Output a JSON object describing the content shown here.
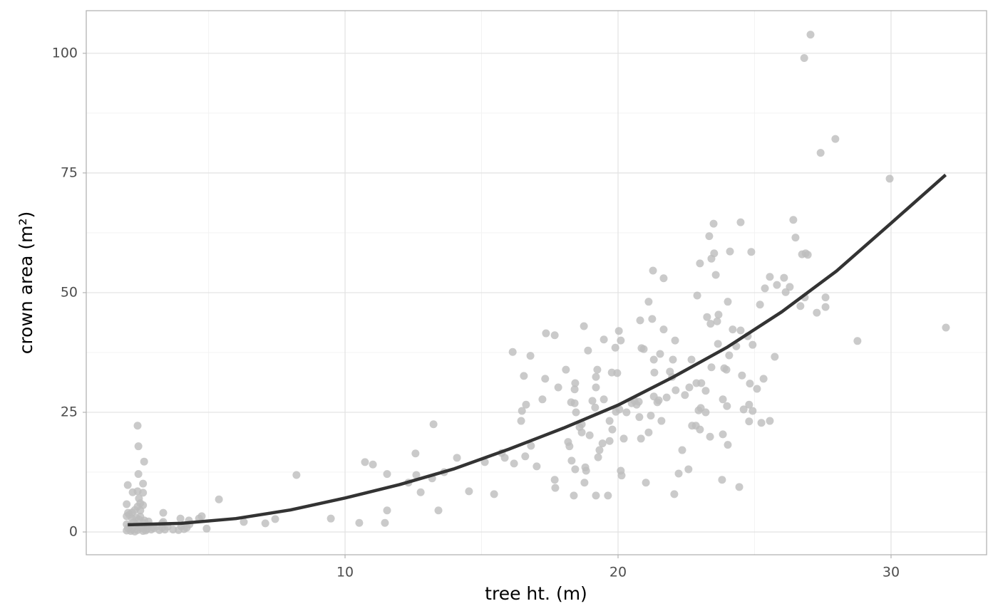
{
  "chart_data": {
    "type": "scatter",
    "x_label": "tree ht. (m)",
    "y_label": "crown area (m²)",
    "xlim": [
      0.52,
      33.5
    ],
    "ylim": [
      -4.76,
      108.9
    ],
    "xticks": [
      10,
      20,
      30
    ],
    "yticks": [
      0,
      25,
      50,
      75,
      100
    ],
    "x_minor_ticks": [
      5,
      15,
      25
    ],
    "y_minor_ticks": [
      12.5,
      37.5,
      62.5,
      87.5
    ],
    "grid": true,
    "color": "#bdbdbd",
    "x": [
      2.0,
      2.05,
      2.1,
      2.0,
      2.15,
      2.2,
      2.25,
      2.3,
      2.1,
      2.0,
      2.2,
      2.35,
      2.4,
      2.45,
      2.5,
      2.3,
      2.4,
      2.5,
      2.55,
      2.6,
      2.6,
      2.65,
      2.7,
      2.7,
      2.5,
      2.75,
      2.8,
      2.9,
      2.95,
      3.0,
      3.1,
      3.2,
      3.3,
      3.4,
      3.5,
      3.7,
      3.9,
      4.0,
      4.1,
      4.2,
      4.3,
      2.2,
      2.35,
      2.05,
      2.45,
      2.6,
      2.8,
      3.3,
      2.4,
      2.43,
      2.43,
      2.64,
      2.04,
      2.6,
      2.6,
      2.22,
      2.4,
      2.0,
      2.45,
      3.34,
      3.97,
      3.34,
      4.75,
      4.65,
      4.28,
      4.93,
      5.38,
      6.29,
      7.08,
      7.44,
      8.22,
      9.48,
      10.52,
      10.73,
      11.02,
      11.46,
      11.54,
      11.54,
      12.32,
      12.58,
      12.61,
      12.77,
      13.19,
      13.24,
      13.42,
      13.63,
      14.1,
      14.54,
      15.12,
      15.46,
      15.74,
      15.85,
      16.14,
      16.19,
      16.45,
      16.48,
      16.55,
      16.63,
      16.6,
      16.79,
      16.81,
      17.02,
      17.23,
      17.33,
      17.36,
      17.68,
      17.68,
      17.7,
      17.81,
      18.09,
      18.17,
      18.22,
      18.28,
      18.3,
      18.38,
      18.41,
      18.43,
      18.41,
      18.43,
      18.46,
      18.59,
      18.67,
      18.67,
      18.75,
      18.77,
      18.8,
      18.83,
      18.9,
      18.96,
      19.06,
      19.16,
      19.19,
      19.19,
      19.24,
      19.19,
      19.27,
      19.32,
      19.43,
      19.48,
      19.48,
      19.63,
      19.69,
      19.69,
      19.77,
      19.79,
      19.9,
      19.92,
      19.97,
      20.03,
      20.05,
      20.1,
      20.1,
      20.13,
      20.21,
      20.31,
      20.5,
      20.6,
      20.68,
      20.76,
      20.78,
      20.81,
      20.84,
      20.86,
      20.94,
      21.02,
      21.12,
      21.12,
      21.2,
      21.25,
      21.28,
      21.31,
      21.31,
      21.33,
      21.44,
      21.49,
      21.54,
      21.59,
      21.67,
      21.67,
      21.78,
      21.9,
      21.98,
      22.01,
      22.06,
      22.09,
      22.11,
      22.22,
      22.35,
      22.45,
      22.58,
      22.61,
      22.69,
      22.71,
      22.85,
      22.87,
      22.9,
      22.95,
      23.0,
      23.0,
      23.03,
      23.05,
      23.21,
      23.21,
      23.26,
      23.34,
      23.37,
      23.39,
      23.42,
      23.42,
      23.5,
      23.52,
      23.58,
      23.63,
      23.66,
      23.68,
      23.81,
      23.84,
      23.84,
      23.89,
      23.97,
      23.99,
      24.02,
      24.02,
      24.07,
      24.1,
      24.2,
      24.33,
      24.44,
      24.49,
      24.49,
      24.54,
      24.6,
      24.75,
      24.8,
      24.8,
      24.83,
      24.88,
      24.93,
      24.93,
      25.09,
      25.2,
      25.25,
      25.33,
      25.38,
      25.56,
      25.56,
      25.74,
      25.82,
      26.08,
      26.14,
      26.29,
      26.42,
      26.5,
      26.68,
      26.74,
      26.82,
      26.84,
      26.87,
      26.95,
      27.05,
      27.28,
      27.42,
      27.6,
      27.6,
      27.96,
      28.77,
      29.95,
      32.01
    ],
    "values": [
      0.3,
      0.8,
      1.2,
      1.6,
      0.2,
      0.5,
      2.0,
      0.1,
      3.6,
      3.3,
      4.1,
      1.5,
      0.4,
      2.6,
      3.2,
      4.6,
      5.3,
      4.5,
      0.8,
      1.9,
      5.6,
      2.4,
      0.3,
      1.1,
      6.0,
      0.6,
      1.4,
      0.5,
      1.0,
      0.8,
      1.2,
      0.4,
      0.9,
      0.5,
      1.1,
      0.5,
      0.4,
      1.2,
      0.6,
      0.9,
      1.6,
      2.8,
      3.0,
      4.0,
      1.0,
      0.2,
      2.2,
      1.8,
      22.2,
      17.9,
      12.1,
      14.7,
      9.8,
      10.1,
      8.2,
      8.3,
      8.5,
      5.8,
      7.0,
      4.0,
      2.8,
      2.1,
      3.3,
      2.8,
      2.4,
      0.7,
      6.8,
      2.1,
      1.8,
      2.7,
      11.9,
      2.8,
      1.9,
      14.6,
      14.1,
      1.9,
      12.1,
      4.5,
      10.3,
      16.4,
      11.9,
      8.3,
      11.2,
      22.5,
      4.5,
      12.5,
      15.5,
      8.5,
      14.6,
      7.9,
      16.5,
      15.5,
      37.6,
      14.3,
      23.2,
      25.3,
      32.6,
      26.6,
      15.8,
      36.8,
      18.0,
      13.7,
      27.7,
      32.0,
      41.5,
      41.1,
      10.9,
      9.2,
      30.2,
      33.9,
      18.8,
      17.9,
      27.1,
      14.9,
      7.6,
      29.8,
      31.1,
      26.9,
      13.1,
      25.0,
      21.9,
      20.8,
      22.5,
      43.0,
      10.3,
      13.5,
      12.8,
      37.9,
      20.2,
      27.4,
      26.0,
      32.4,
      30.2,
      33.9,
      7.6,
      15.6,
      17.1,
      18.5,
      27.7,
      40.2,
      7.6,
      23.2,
      19.0,
      33.3,
      21.4,
      38.5,
      25.1,
      33.2,
      42.0,
      25.6,
      40.0,
      12.8,
      11.8,
      19.5,
      25.0,
      26.9,
      27.4,
      26.6,
      27.2,
      24.0,
      44.2,
      19.5,
      38.4,
      38.2,
      10.3,
      48.1,
      20.8,
      24.3,
      44.5,
      54.6,
      36.0,
      28.3,
      33.3,
      27.1,
      27.5,
      37.2,
      23.2,
      53.0,
      42.3,
      28.1,
      33.5,
      32.4,
      36.0,
      7.9,
      40.0,
      29.6,
      12.2,
      17.1,
      28.6,
      13.1,
      30.2,
      36.0,
      22.2,
      22.2,
      31.1,
      49.4,
      25.4,
      21.4,
      56.1,
      25.9,
      31.1,
      29.5,
      25.0,
      44.9,
      61.8,
      19.9,
      43.5,
      57.1,
      34.4,
      64.4,
      58.2,
      53.7,
      44.0,
      39.3,
      45.4,
      10.9,
      27.7,
      20.4,
      34.2,
      33.9,
      26.3,
      48.1,
      18.2,
      36.9,
      58.6,
      42.3,
      38.8,
      9.4,
      64.7,
      42.1,
      32.7,
      25.6,
      40.9,
      26.6,
      23.1,
      31.0,
      58.5,
      39.1,
      25.3,
      29.9,
      47.5,
      22.8,
      32.0,
      50.9,
      53.3,
      23.2,
      36.6,
      51.6,
      53.1,
      50.1,
      51.2,
      65.2,
      61.5,
      47.2,
      58.0,
      99.0,
      49.0,
      58.2,
      57.9,
      103.9,
      45.8,
      79.2,
      47.0,
      49.0,
      82.1,
      39.9,
      73.8,
      42.7
    ],
    "fit": {
      "type": "line",
      "color": "#333333",
      "x": [
        2.04,
        4,
        6,
        8,
        10,
        12,
        14,
        16,
        18,
        20,
        22,
        24,
        26,
        28,
        30,
        32
      ],
      "values": [
        1.5,
        1.8,
        2.8,
        4.6,
        7.1,
        9.9,
        13.2,
        17.3,
        21.7,
        26.5,
        32.3,
        38.6,
        46.0,
        54.5,
        64.5,
        74.6
      ]
    }
  }
}
